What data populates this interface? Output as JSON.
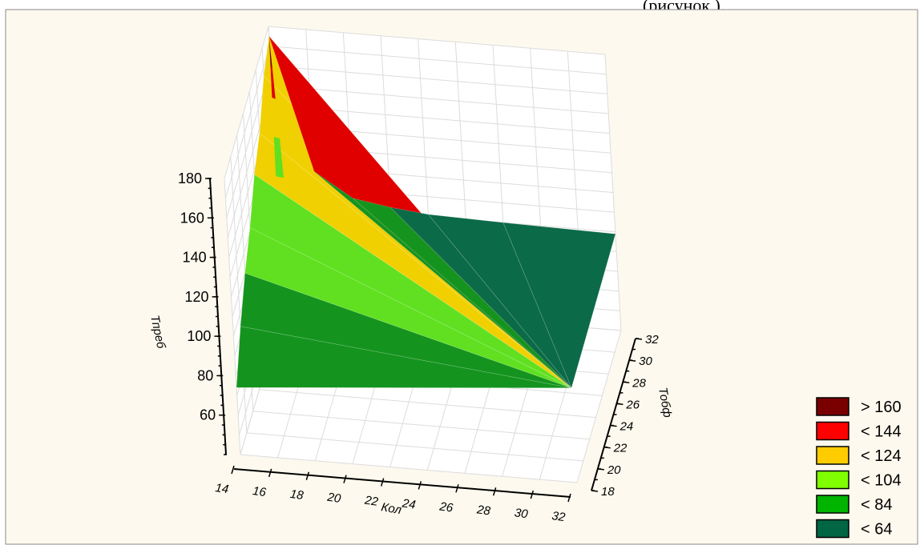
{
  "header_text": "... (рисунок ).",
  "chart_data": {
    "type": "surface3d",
    "title": "",
    "xlabel": "Кол",
    "ylabel": "Тобф",
    "zlabel": "Тпреб",
    "x_ticks": [
      "14",
      "16",
      "18",
      "20",
      "22",
      "24",
      "26",
      "28",
      "30",
      "32"
    ],
    "y_ticks": [
      "18",
      "20",
      "22",
      "24",
      "26",
      "28",
      "30",
      "32"
    ],
    "z_ticks": [
      "60",
      "80",
      "100",
      "120",
      "140",
      "160",
      "180"
    ],
    "xlim": [
      14,
      32
    ],
    "ylim": [
      18,
      32
    ],
    "zlim": [
      40,
      180
    ],
    "grid": true,
    "legend_position": "bottom-right",
    "surface_points": [
      {
        "x": 14,
        "y": 18,
        "z": 74
      },
      {
        "x": 14,
        "y": 20,
        "z": 94
      },
      {
        "x": 14,
        "y": 22,
        "z": 110
      },
      {
        "x": 14,
        "y": 24,
        "z": 122
      },
      {
        "x": 14,
        "y": 26,
        "z": 138
      },
      {
        "x": 14,
        "y": 28,
        "z": 148
      },
      {
        "x": 14,
        "y": 30,
        "z": 166
      },
      {
        "x": 14,
        "y": 32,
        "z": 175
      },
      {
        "x": 16,
        "y": 32,
        "z": 108
      },
      {
        "x": 18,
        "y": 32,
        "z": 96
      },
      {
        "x": 20,
        "y": 32,
        "z": 93
      },
      {
        "x": 22,
        "y": 32,
        "z": 91
      },
      {
        "x": 26,
        "y": 32,
        "z": 90
      },
      {
        "x": 32,
        "y": 32,
        "z": 89
      },
      {
        "x": 32,
        "y": 18,
        "z": 88
      }
    ],
    "legend": [
      {
        "label": "> 160",
        "color": "#7a0000"
      },
      {
        "label": "< 144",
        "color": "#ff0000"
      },
      {
        "label": "< 124",
        "color": "#ffcc00"
      },
      {
        "label": "< 104",
        "color": "#80ff00"
      },
      {
        "label": "< 84",
        "color": "#00b400"
      },
      {
        "label": "< 64",
        "color": "#006644"
      }
    ]
  }
}
